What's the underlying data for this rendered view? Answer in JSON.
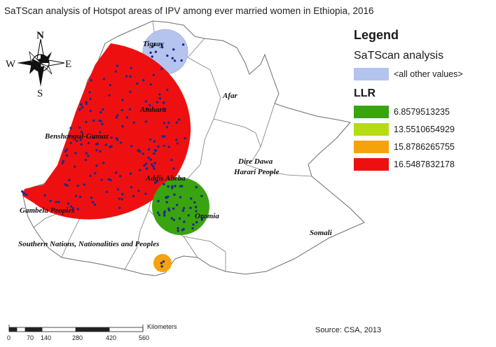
{
  "title": "SaTScan analysis of Hotspot areas of IPV among ever married women in Ethiopia, 2016",
  "compass": {
    "n": "N",
    "s": "S",
    "e": "E",
    "w": "W"
  },
  "regions": {
    "tigray": "Tigray",
    "afar": "Afar",
    "amhara": "Amhara",
    "benshangul": "Benshangul-Gumaz",
    "dire_dawa": "Dire Dawa",
    "harari": "Harari People",
    "addis": "Addis Abeba",
    "gambela": "Gambela Peoples",
    "oromia": "Oromia",
    "snnp": "Southern Nations, Nationalities and Peoples",
    "somali": "Somali"
  },
  "legend": {
    "title": "Legend",
    "satscan_heading": "SaTScan analysis",
    "other_label": "<all other values>",
    "other_color": "#b4c4ef",
    "llr_heading": "LLR",
    "items": [
      {
        "label": "6.8579513235",
        "color": "#3aa310"
      },
      {
        "label": "13.5510654929",
        "color": "#b5dc10"
      },
      {
        "label": "15.8786265755",
        "color": "#f5a30c"
      },
      {
        "label": "16.5487832178",
        "color": "#ee1010"
      }
    ]
  },
  "clusters": [
    {
      "name": "Tigray",
      "fill": "#b4c4ef"
    },
    {
      "name": "Amhara-Benshangul-Gambela",
      "fill": "#ee1010"
    },
    {
      "name": "Oromia",
      "fill": "#3aa310"
    },
    {
      "name": "Southern",
      "fill": "#f5a30c"
    }
  ],
  "scale": {
    "ticks": [
      "0",
      "70",
      "140",
      "280",
      "420",
      "560"
    ],
    "unit": "Kilometers"
  },
  "source": "Source: CSA, 2013",
  "point_color": "#1b2a8a"
}
